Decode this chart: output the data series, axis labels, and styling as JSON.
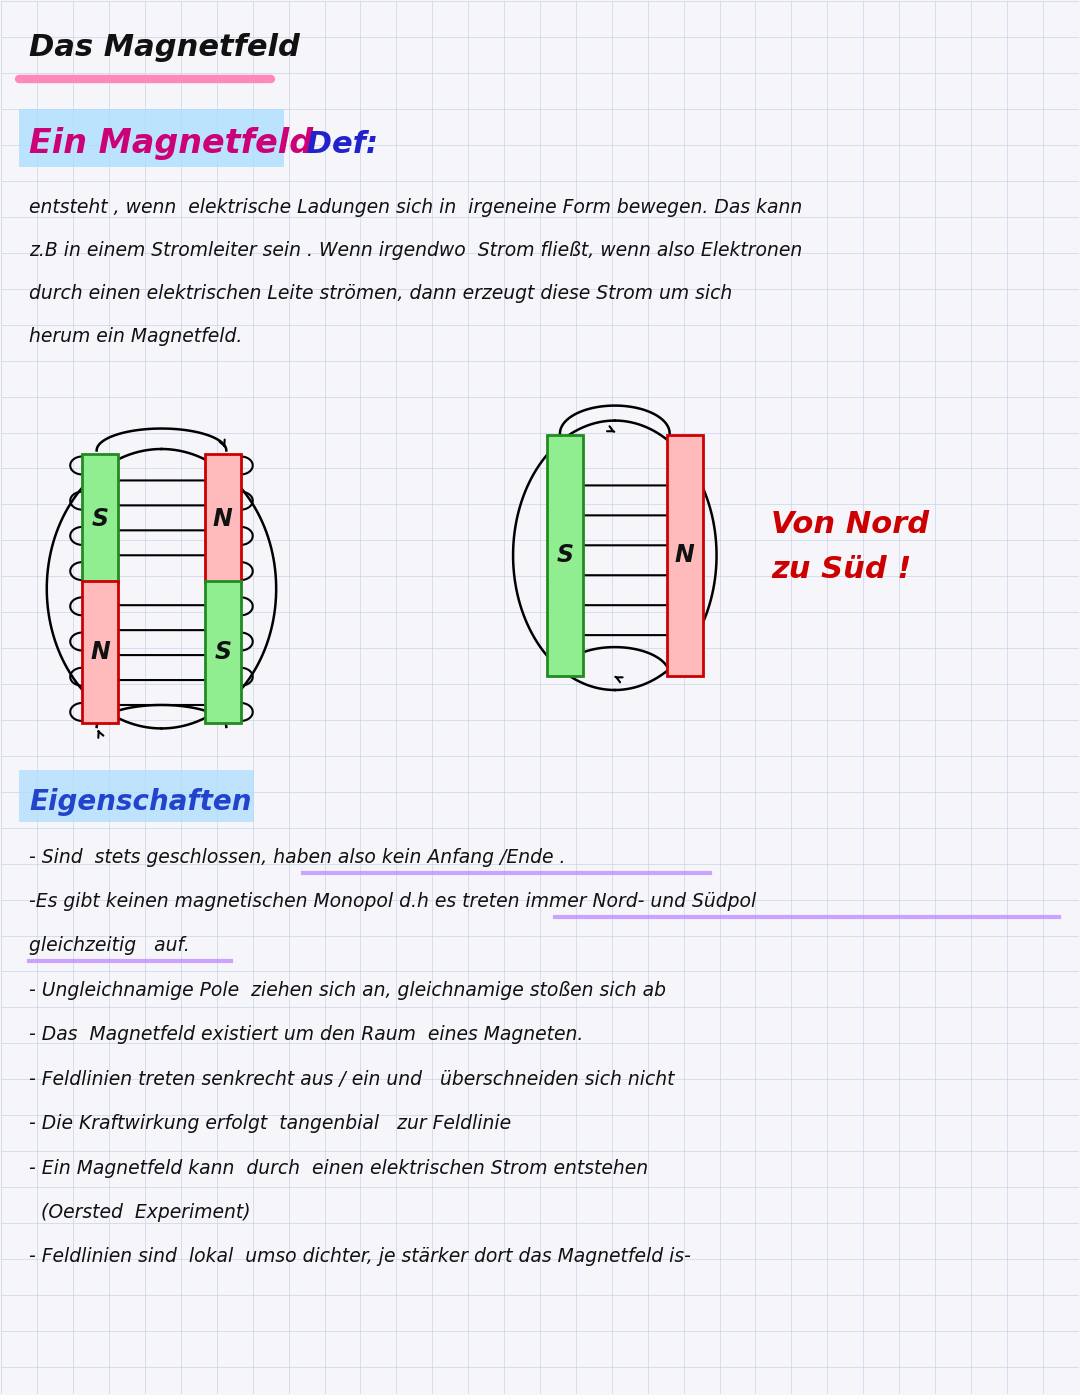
{
  "bg_color": "#f5f5fa",
  "grid_color": "#c8d4e8",
  "title": "Das Magnetfeld",
  "title_color": "#111111",
  "title_underline_color": "#ff88bb",
  "section1_title": "Ein Magnetfeld",
  "section1_def": " Def:",
  "section1_highlight": "#aaddff",
  "section1_text_lines": [
    "entsteht , wenn  elektrische Ladungen sich in  irgeneine Form bewegen. Das kann",
    "z.B in einem Stromleiter sein . Wenn irgendwo  Strom fließt, wenn also Elektronen",
    "durch einen elektrischen Leite strömen, dann erzeugt diese Strom um sich",
    "herum ein Magnetfeld."
  ],
  "von_nord": "Von Nord\nzu Süd !",
  "von_nord_color": "#cc0000",
  "eigenschaften_title": "Eigenschaften",
  "eigenschaften_color": "#2244cc",
  "eigenschaften_highlight": "#aaddff",
  "bullet_points": [
    "- Sind  stets geschlossen, haben also kein Anfang /Ende .",
    "-Es gibt keinen magnetischen Monopol d.h es treten immer Nord- und Südpol",
    "gleichzeitig   auf.",
    "- Ungleichnamige Pole  ziehen sich an, gleichnamige stoßen sich ab",
    "- Das  Magnetfeld existiert um den Raum  eines Magneten.",
    "- Feldlinien treten senkrecht aus / ein und   überschneiden sich nicht",
    "- Die Kraftwirkung erfolgt  tangenbial   zur Feldlinie",
    "- Ein Magnetfeld kann  durch  einen elektrischen Strom entstehen",
    "  (Oersted  Experiment)",
    "- Feldlinien sind  lokal  umso dichter, je stärker dort das Magnetfeld is-"
  ],
  "purple_color": "#bb88ff",
  "green_box": "#90ee90",
  "green_border": "#228B22",
  "red_box": "#ffbbbb",
  "red_border": "#cc0000"
}
